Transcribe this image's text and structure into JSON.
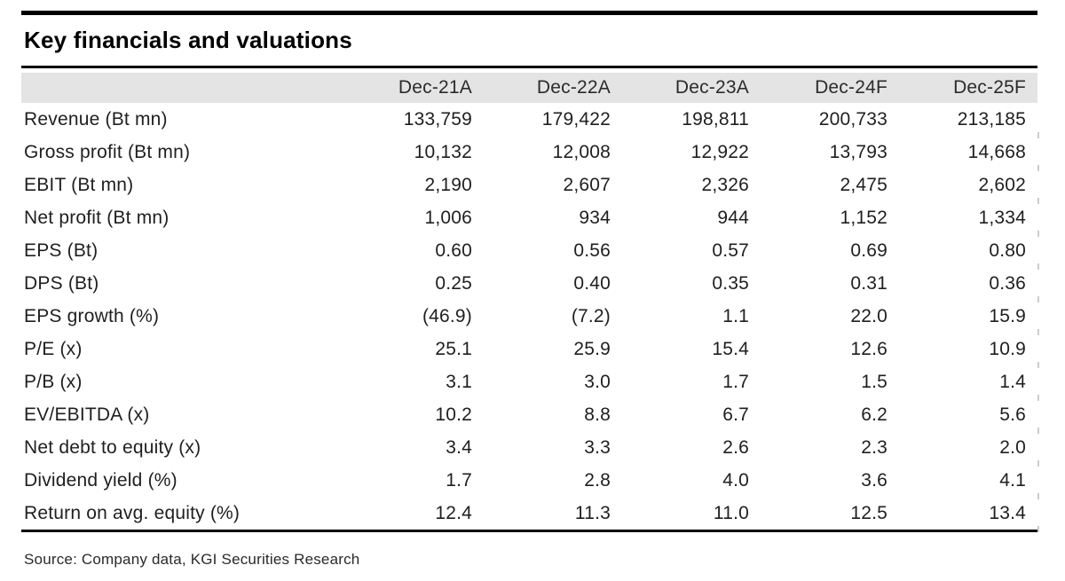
{
  "title": "Key financials and valuations",
  "table": {
    "columns": [
      "Dec-21A",
      "Dec-22A",
      "Dec-23A",
      "Dec-24F",
      "Dec-25F"
    ],
    "rows": [
      {
        "label": "Revenue (Bt mn)",
        "values": [
          "133,759",
          "179,422",
          "198,811",
          "200,733",
          "213,185"
        ]
      },
      {
        "label": "Gross profit (Bt mn)",
        "values": [
          "10,132",
          "12,008",
          "12,922",
          "13,793",
          "14,668"
        ]
      },
      {
        "label": "EBIT (Bt mn)",
        "values": [
          "2,190",
          "2,607",
          "2,326",
          "2,475",
          "2,602"
        ]
      },
      {
        "label": "Net profit (Bt mn)",
        "values": [
          "1,006",
          "934",
          "944",
          "1,152",
          "1,334"
        ]
      },
      {
        "label": "EPS (Bt)",
        "values": [
          "0.60",
          "0.56",
          "0.57",
          "0.69",
          "0.80"
        ]
      },
      {
        "label": "DPS (Bt)",
        "values": [
          "0.25",
          "0.40",
          "0.35",
          "0.31",
          "0.36"
        ]
      },
      {
        "label": "EPS growth (%)",
        "values": [
          "(46.9)",
          "(7.2)",
          "1.1",
          "22.0",
          "15.9"
        ]
      },
      {
        "label": "P/E (x)",
        "values": [
          "25.1",
          "25.9",
          "15.4",
          "12.6",
          "10.9"
        ]
      },
      {
        "label": "P/B (x)",
        "values": [
          "3.1",
          "3.0",
          "1.7",
          "1.5",
          "1.4"
        ]
      },
      {
        "label": "EV/EBITDA (x)",
        "values": [
          "10.2",
          "8.8",
          "6.7",
          "6.2",
          "5.6"
        ]
      },
      {
        "label": "Net debt to equity (x)",
        "values": [
          "3.4",
          "3.3",
          "2.6",
          "2.3",
          "2.0"
        ]
      },
      {
        "label": "Dividend yield (%)",
        "values": [
          "1.7",
          "2.8",
          "4.0",
          "3.6",
          "4.1"
        ]
      },
      {
        "label": "Return on avg. equity (%)",
        "values": [
          "12.4",
          "11.3",
          "11.0",
          "12.5",
          "13.4"
        ]
      }
    ]
  },
  "source": "Source: Company data, KGI Securities Research",
  "colors": {
    "header_bg": "#e3e4e3",
    "rule": "#000000",
    "text": "#1f1f1f"
  }
}
